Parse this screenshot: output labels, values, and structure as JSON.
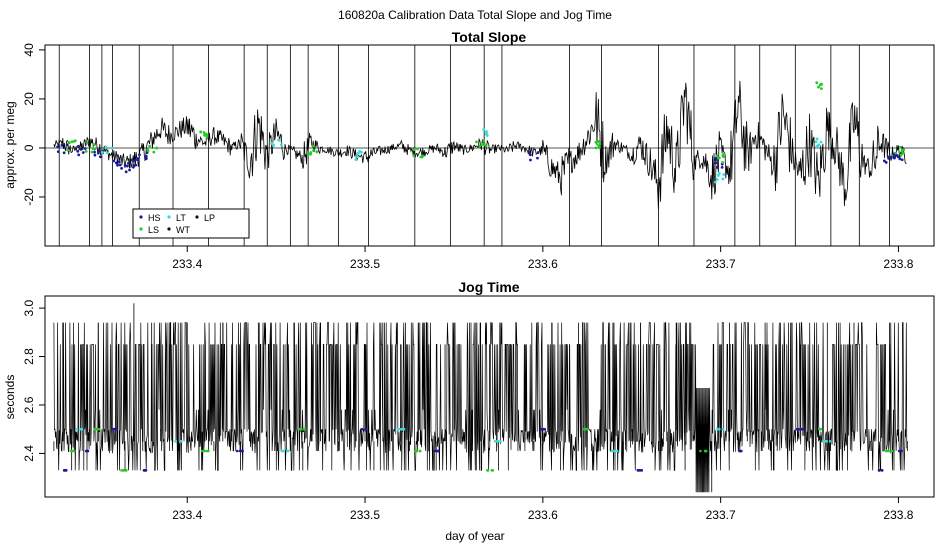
{
  "figure_title": "160820a   Calibration Data Total Slope and Jog Time",
  "chart_data": [
    {
      "type": "line",
      "title": "Total Slope",
      "xlabel": "",
      "ylabel": "approx. per meg",
      "xlim": [
        233.32,
        233.82
      ],
      "ylim": [
        -40,
        42
      ],
      "x_ticks": [
        "233.4",
        "233.5",
        "233.6",
        "233.7",
        "233.8"
      ],
      "y_ticks": [
        "-20",
        "0",
        "20",
        "40"
      ],
      "reference_line_y": 0,
      "legend": {
        "placement": "bottom-left",
        "entries": [
          {
            "label": "HS",
            "color": "#1a1a9e"
          },
          {
            "label": "LS",
            "color": "#22cc22"
          },
          {
            "label": "LT",
            "color": "#33dddd"
          },
          {
            "label": "WT",
            "color": "#111111"
          },
          {
            "label": "LP",
            "color": "#111111"
          }
        ]
      },
      "series": [
        {
          "color": "#000000",
          "x": [
            233.325,
            233.33,
            233.335,
            233.34,
            233.345,
            233.35,
            233.355,
            233.36,
            233.365,
            233.37,
            233.375,
            233.38,
            233.385,
            233.39,
            233.395,
            233.4,
            233.405,
            233.41,
            233.415,
            233.42,
            233.425,
            233.43,
            233.435,
            233.44,
            233.445,
            233.45,
            233.455,
            233.46,
            233.465,
            233.47,
            233.475,
            233.48,
            233.485,
            233.49,
            233.495,
            233.5,
            233.505,
            233.51,
            233.515,
            233.52,
            233.525,
            233.53,
            233.535,
            233.54,
            233.545,
            233.55,
            233.555,
            233.56,
            233.565,
            233.57,
            233.575,
            233.58,
            233.585,
            233.59,
            233.595,
            233.6,
            233.605,
            233.61,
            233.615,
            233.62,
            233.625,
            233.63,
            233.635,
            233.64,
            233.645,
            233.65,
            233.655,
            233.66,
            233.665,
            233.67,
            233.675,
            233.68,
            233.685,
            233.69,
            233.695,
            233.7,
            233.705,
            233.71,
            233.715,
            233.72,
            233.725,
            233.73,
            233.735,
            233.74,
            233.745,
            233.75,
            233.755,
            233.76,
            233.765,
            233.77,
            233.775,
            233.78,
            233.785,
            233.79,
            233.795,
            233.8,
            233.805
          ],
          "y": [
            1,
            2,
            -1,
            0,
            3,
            1,
            -2,
            -4,
            -6,
            -5,
            -2,
            3,
            8,
            5,
            7,
            9,
            4,
            2,
            5,
            3,
            0,
            2,
            -6,
            10,
            -3,
            6,
            0,
            -2,
            -4,
            2,
            0,
            -1,
            -2,
            -1,
            -3,
            -4,
            -2,
            -1,
            0,
            1,
            -1,
            -2,
            -1,
            0,
            -2,
            1,
            -1,
            0,
            2,
            -1,
            0,
            -1,
            1,
            0,
            -2,
            -1,
            -8,
            -12,
            -6,
            -2,
            4,
            12,
            -5,
            2,
            0,
            -3,
            2,
            -6,
            -15,
            8,
            -10,
            22,
            -6,
            -3,
            -12,
            -2,
            -10,
            18,
            -4,
            6,
            0,
            -8,
            14,
            -2,
            -12,
            3,
            -15,
            9,
            0,
            -16,
            12,
            -6,
            -9,
            3,
            -3,
            -1,
            -4
          ]
        },
        {
          "name": "HS",
          "color": "#1a1a9e",
          "x": [
            233.33,
            233.34,
            233.35,
            233.36,
            233.365,
            233.37,
            233.375,
            233.595,
            233.7,
            233.795,
            233.8
          ],
          "y": [
            0,
            -1,
            -2,
            -5,
            -8,
            -6,
            -3,
            -3,
            -6,
            -4,
            -3
          ]
        },
        {
          "name": "LS",
          "color": "#22cc22",
          "x": [
            233.335,
            233.345,
            233.38,
            233.41,
            233.47,
            233.53,
            233.565,
            233.63,
            233.7,
            233.755,
            233.8
          ],
          "y": [
            1,
            0,
            -1,
            6,
            -1,
            -2,
            2,
            2,
            -4,
            25,
            -1
          ]
        },
        {
          "name": "LT",
          "color": "#33dddd",
          "x": [
            233.355,
            233.45,
            233.495,
            233.568,
            233.7,
            233.755
          ],
          "y": [
            -1,
            2,
            -3,
            6,
            -12,
            2
          ]
        }
      ],
      "spikes_x": [
        233.328,
        233.345,
        233.352,
        233.358,
        233.373,
        233.392,
        233.412,
        233.432,
        233.445,
        233.458,
        233.468,
        233.485,
        233.502,
        233.528,
        233.548,
        233.567,
        233.577,
        233.615,
        233.633,
        233.665,
        233.685,
        233.708,
        233.722,
        233.742,
        233.762,
        233.778,
        233.795
      ]
    },
    {
      "type": "line",
      "title": "Jog Time",
      "xlabel": "day of year",
      "ylabel": "seconds",
      "xlim": [
        233.32,
        233.82
      ],
      "ylim": [
        2.22,
        3.05
      ],
      "x_ticks": [
        "233.4",
        "233.5",
        "233.6",
        "233.7",
        "233.8"
      ],
      "y_ticks": [
        "2.4",
        "2.6",
        "2.8",
        "3.0"
      ],
      "levels": [
        2.33,
        2.41,
        2.45,
        2.49,
        2.5,
        2.58,
        2.67,
        2.85,
        2.94
      ],
      "series": [
        {
          "color": "#000000",
          "x": [
            233.325,
            233.33,
            233.335,
            233.34,
            233.345,
            233.35,
            233.355,
            233.36,
            233.365,
            233.37,
            233.375,
            233.38,
            233.385,
            233.39,
            233.395,
            233.4,
            233.405,
            233.41,
            233.415,
            233.42,
            233.425,
            233.43,
            233.435,
            233.44,
            233.445,
            233.45,
            233.455,
            233.46,
            233.465,
            233.47,
            233.475,
            233.48,
            233.485,
            233.49,
            233.495,
            233.5,
            233.505,
            233.51,
            233.515,
            233.52,
            233.525,
            233.53,
            233.535,
            233.54,
            233.545,
            233.55,
            233.555,
            233.56,
            233.565,
            233.57,
            233.575,
            233.58,
            233.585,
            233.59,
            233.595,
            233.6,
            233.605,
            233.61,
            233.615,
            233.62,
            233.625,
            233.63,
            233.635,
            233.64,
            233.645,
            233.65,
            233.655,
            233.66,
            233.665,
            233.67,
            233.675,
            233.68,
            233.685,
            233.69,
            233.695,
            233.7,
            233.705,
            233.71,
            233.715,
            233.72,
            233.725,
            233.73,
            233.735,
            233.74,
            233.745,
            233.75,
            233.755,
            233.76,
            233.765,
            233.77,
            233.775,
            233.78,
            233.785,
            233.79,
            233.795,
            233.8,
            233.805
          ],
          "y": [
            2.41,
            2.94,
            2.33,
            2.85,
            2.5,
            2.94,
            2.45,
            2.85,
            2.33,
            3.02,
            2.41,
            2.94,
            2.5,
            2.85,
            2.33,
            2.94,
            2.45,
            2.85,
            2.41,
            2.94,
            2.5,
            2.33,
            2.85,
            2.94,
            2.45,
            2.41,
            2.85,
            2.94,
            2.33,
            2.5,
            2.94,
            2.85,
            2.41,
            2.45,
            2.94,
            2.85,
            2.33,
            2.94,
            2.5,
            2.85,
            2.41,
            2.94,
            2.45,
            2.33,
            2.85,
            2.94,
            2.5,
            2.41,
            2.94,
            2.85,
            2.33,
            2.45,
            2.94,
            2.85,
            2.41,
            2.5,
            2.94,
            2.33,
            2.85,
            2.94,
            2.45,
            2.41,
            2.85,
            2.94,
            2.33,
            2.5,
            2.94,
            2.85,
            2.41,
            2.45,
            2.94,
            2.33,
            2.85,
            2.24,
            2.24,
            2.85,
            2.94,
            2.41,
            2.5,
            2.85,
            2.94,
            2.33,
            2.45,
            2.94,
            2.85,
            2.41,
            2.5,
            2.94,
            2.33,
            2.85,
            2.94,
            2.45,
            2.41,
            2.85,
            2.94,
            2.5,
            2.41
          ]
        },
        {
          "name": "HS",
          "color": "#1a1a9e",
          "x": [
            233.33,
            233.345,
            233.36,
            233.375,
            233.43,
            233.5,
            233.54,
            233.6,
            233.655,
            233.71,
            233.745,
            233.79,
            233.8
          ],
          "y": [
            2.33,
            2.41,
            2.5,
            2.33,
            2.41,
            2.5,
            2.41,
            2.5,
            2.33,
            2.41,
            2.5,
            2.33,
            2.41
          ]
        },
        {
          "name": "LS",
          "color": "#22cc22",
          "x": [
            233.335,
            233.35,
            233.365,
            233.41,
            233.465,
            233.53,
            233.57,
            233.625,
            233.69,
            233.755,
            233.795
          ],
          "y": [
            2.41,
            2.5,
            2.33,
            2.41,
            2.5,
            2.41,
            2.33,
            2.5,
            2.41,
            2.5,
            2.41
          ]
        },
        {
          "name": "LT",
          "color": "#33dddd",
          "x": [
            233.34,
            233.395,
            233.455,
            233.52,
            233.575,
            233.64,
            233.7,
            233.76
          ],
          "y": [
            2.5,
            2.45,
            2.41,
            2.5,
            2.45,
            2.41,
            2.5,
            2.45
          ]
        }
      ]
    }
  ]
}
